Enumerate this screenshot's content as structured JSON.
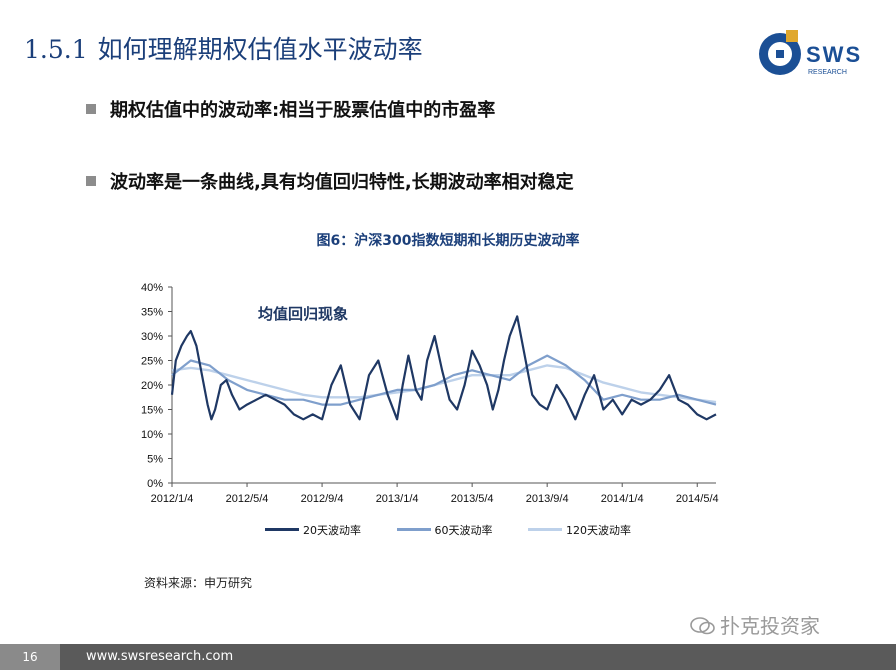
{
  "slide": {
    "title_number": "1.5.1",
    "title_text": "如何理解期权估值水平波动率",
    "bullets": [
      "期权估值中的波动率:相当于股票估值中的市盈率",
      "波动率是一条曲线,具有均值回归特性,长期波动率相对稳定"
    ],
    "source": "资料来源：申万研究",
    "watermark": "扑克投资家",
    "page_number": "16",
    "url": "www.swsresearch.com",
    "logo": {
      "text": "SWS",
      "subtext": "RESEARCH",
      "icon": "sws-logo-icon"
    }
  },
  "colors": {
    "title": "#1b3f7a",
    "series_20": "#1f3864",
    "series_60": "#7f9fcc",
    "series_120": "#bdd1ea",
    "logo_blue": "#1b4f95",
    "logo_gold": "#e0a82e"
  },
  "chart_data": {
    "type": "line",
    "title": "图6：沪深300指数短期和长期历史波动率",
    "annotation": "均值回归现象",
    "x_tick_labels": [
      "2012/1/4",
      "2012/5/4",
      "2012/9/4",
      "2013/1/4",
      "2013/5/4",
      "2013/9/4",
      "2014/1/4",
      "2014/5/4"
    ],
    "x_range_months": [
      0,
      29
    ],
    "y_tick_labels": [
      "0%",
      "5%",
      "10%",
      "15%",
      "20%",
      "25%",
      "30%",
      "35%",
      "40%"
    ],
    "ylim": [
      0,
      40
    ],
    "y_unit": "%",
    "series": [
      {
        "name": "20天波动率",
        "x": [
          0,
          0.2,
          0.5,
          0.8,
          1.0,
          1.3,
          1.6,
          1.9,
          2.1,
          2.3,
          2.6,
          2.9,
          3.2,
          3.6,
          4.0,
          4.5,
          5.0,
          5.5,
          6.0,
          6.5,
          7.0,
          7.5,
          8.0,
          8.5,
          9.0,
          9.5,
          10.0,
          10.5,
          11.0,
          11.5,
          12.0,
          12.3,
          12.6,
          13.0,
          13.3,
          13.6,
          14.0,
          14.4,
          14.8,
          15.2,
          15.6,
          16.0,
          16.4,
          16.8,
          17.1,
          17.4,
          17.7,
          18.0,
          18.4,
          18.8,
          19.2,
          19.6,
          20.0,
          20.5,
          21.0,
          21.5,
          22.0,
          22.5,
          23.0,
          23.5,
          24.0,
          24.5,
          25.0,
          25.5,
          26.0,
          26.5,
          27.0,
          27.5,
          28.0,
          28.5,
          29.0
        ],
        "values": [
          18,
          25,
          28,
          30,
          31,
          28,
          22,
          16,
          13,
          15,
          20,
          21,
          18,
          15,
          16,
          17,
          18,
          17,
          16,
          14,
          13,
          14,
          13,
          20,
          24,
          16,
          13,
          22,
          25,
          18,
          13,
          20,
          26,
          19,
          17,
          25,
          30,
          23,
          17,
          15,
          20,
          27,
          24,
          20,
          15,
          19,
          25,
          30,
          34,
          26,
          18,
          16,
          15,
          20,
          17,
          13,
          18,
          22,
          15,
          17,
          14,
          17,
          16,
          17,
          19,
          22,
          17,
          16,
          14,
          13,
          14
        ]
      },
      {
        "name": "60天波动率",
        "x": [
          0,
          1,
          2,
          3,
          4,
          5,
          6,
          7,
          8,
          9,
          10,
          11,
          12,
          13,
          14,
          15,
          16,
          17,
          18,
          19,
          20,
          21,
          22,
          23,
          24,
          25,
          26,
          27,
          28,
          29
        ],
        "values": [
          22,
          25,
          24,
          21,
          19,
          18,
          17,
          17,
          16,
          16,
          17,
          18,
          19,
          19,
          20,
          22,
          23,
          22,
          21,
          24,
          26,
          24,
          21,
          17,
          18,
          17,
          17,
          18,
          17,
          16
        ]
      },
      {
        "name": "120天波动率",
        "x": [
          0,
          1,
          2,
          3,
          4,
          5,
          6,
          7,
          8,
          9,
          10,
          11,
          12,
          13,
          14,
          15,
          16,
          17,
          18,
          19,
          20,
          21,
          22,
          23,
          24,
          25,
          26,
          27,
          28,
          29
        ],
        "values": [
          23,
          23.5,
          23,
          22,
          21,
          20,
          19,
          18,
          17.5,
          17.5,
          17.5,
          18,
          18.5,
          19,
          20,
          21,
          22,
          22,
          22,
          23,
          24,
          23.5,
          22,
          20.5,
          19.5,
          18.5,
          18,
          17.5,
          17,
          16.5
        ]
      }
    ]
  }
}
